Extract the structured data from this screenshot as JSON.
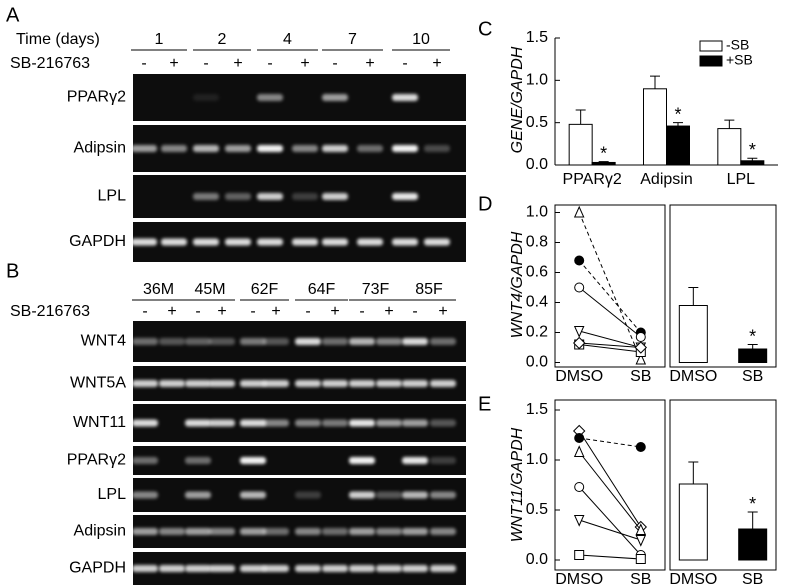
{
  "panel_a": {
    "label": "A",
    "row_header": "Time (days)",
    "treatment_label": "SB-216763",
    "groups": [
      "1",
      "2",
      "4",
      "7",
      "10"
    ],
    "lanes": [
      "-",
      "+",
      "-",
      "+",
      "-",
      "+",
      "-",
      "+",
      "-",
      "+"
    ],
    "rows": [
      "PPARγ2",
      "Adipsin",
      "LPL",
      "GAPDH"
    ]
  },
  "panel_b": {
    "label": "B",
    "treatment_label": "SB-216763",
    "groups": [
      "36M",
      "45M",
      "62F",
      "64F",
      "73F",
      "85F"
    ],
    "lanes": [
      "-",
      "+",
      "-",
      "+",
      "-",
      "+",
      "-",
      "+",
      "-",
      "+",
      "-",
      "+"
    ],
    "rows": [
      "WNT4",
      "WNT5A",
      "WNT11",
      "PPARγ2",
      "LPL",
      "Adipsin",
      "GAPDH"
    ]
  },
  "chart_data": [
    {
      "type": "bar",
      "panel": "C",
      "ylabel": "GENE/GAPDH",
      "categories": [
        "PPARγ2",
        "Adipsin",
        "LPL"
      ],
      "series": [
        {
          "name": "-SB",
          "color": "#ffffff",
          "values": [
            0.48,
            0.9,
            0.43
          ],
          "errors": [
            0.17,
            0.15,
            0.1
          ]
        },
        {
          "name": "+SB",
          "color": "#000000",
          "values": [
            0.03,
            0.46,
            0.05
          ],
          "errors": [
            0.01,
            0.04,
            0.03
          ],
          "significance": [
            "*",
            "*",
            "*"
          ]
        }
      ],
      "ylim": [
        0,
        1.5
      ],
      "yticks": [
        {
          "value": 0,
          "label": "0.0"
        },
        0.5,
        {
          "value": 1,
          "label": "1.0"
        },
        1.5
      ],
      "legend": "top-right"
    },
    {
      "type": "line",
      "panel": "D",
      "ylabel": "WNT4/GAPDH",
      "categories": [
        "DMSO",
        "SB"
      ],
      "series": [
        {
          "marker": "triangle",
          "filled": false,
          "dash": true,
          "values": [
            1.0,
            0.02
          ]
        },
        {
          "marker": "circle",
          "filled": true,
          "dash": true,
          "values": [
            0.68,
            0.2
          ]
        },
        {
          "marker": "circle",
          "filled": false,
          "dash": false,
          "values": [
            0.5,
            0.17
          ]
        },
        {
          "marker": "triangle-down",
          "filled": false,
          "dash": false,
          "values": [
            0.21,
            0.1
          ]
        },
        {
          "marker": "square",
          "filled": false,
          "dash": false,
          "values": [
            0.12,
            0.07
          ]
        },
        {
          "marker": "diamond",
          "filled": false,
          "dash": false,
          "values": [
            0.13,
            0.1
          ]
        }
      ],
      "ylim": [
        -0.03,
        1.05
      ],
      "yticks": [
        {
          "value": 0,
          "label": "0.0"
        },
        0.2,
        0.4,
        0.6,
        0.8,
        {
          "value": 1,
          "label": "1.0"
        }
      ]
    },
    {
      "type": "bar",
      "categories": [
        "DMSO",
        "SB"
      ],
      "values": [
        0.38,
        0.09
      ],
      "errors": [
        0.12,
        0.03
      ],
      "colors": [
        "#ffffff",
        "#000000"
      ],
      "significance": [
        null,
        "*"
      ],
      "ylim": [
        -0.03,
        1.05
      ]
    },
    {
      "type": "line",
      "panel": "E",
      "ylabel": "WNT11/GAPDH",
      "categories": [
        "DMSO",
        "SB"
      ],
      "series": [
        {
          "marker": "diamond",
          "filled": false,
          "dash": false,
          "values": [
            1.29,
            0.33
          ]
        },
        {
          "marker": "circle",
          "filled": true,
          "dash": true,
          "values": [
            1.22,
            1.13
          ]
        },
        {
          "marker": "triangle",
          "filled": false,
          "dash": false,
          "values": [
            1.08,
            0.3
          ]
        },
        {
          "marker": "circle",
          "filled": false,
          "dash": false,
          "values": [
            0.73,
            0.05
          ]
        },
        {
          "marker": "triangle-down",
          "filled": false,
          "dash": false,
          "values": [
            0.4,
            0.2
          ]
        },
        {
          "marker": "square",
          "filled": false,
          "dash": false,
          "values": [
            0.05,
            0.01
          ]
        }
      ],
      "ylim": [
        -0.1,
        1.6
      ],
      "yticks": [
        {
          "value": 0,
          "label": "0.0"
        },
        0.5,
        {
          "value": 1,
          "label": "1.0"
        },
        1.5
      ]
    },
    {
      "type": "bar",
      "categories": [
        "DMSO",
        "SB"
      ],
      "values": [
        0.76,
        0.31
      ],
      "errors": [
        0.22,
        0.17
      ],
      "colors": [
        "#ffffff",
        "#000000"
      ],
      "significance": [
        null,
        "*"
      ],
      "ylim": [
        -0.1,
        1.6
      ]
    }
  ]
}
